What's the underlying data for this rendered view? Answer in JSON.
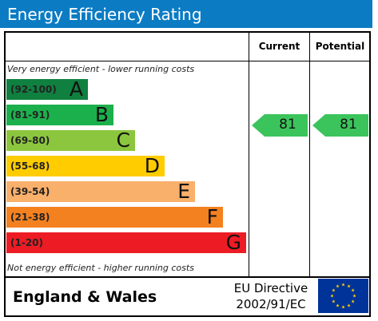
{
  "title": "Energy Efficiency Rating",
  "columns": {
    "current": "Current",
    "potential": "Potential"
  },
  "top_note": "Very energy efficient - lower running costs",
  "bottom_note": "Not energy efficient - higher running costs",
  "bands": [
    {
      "range": "(92-100)",
      "letter": "A",
      "color": "#108040"
    },
    {
      "range": "(81-91)",
      "letter": "B",
      "color": "#1cb04c"
    },
    {
      "range": "(69-80)",
      "letter": "C",
      "color": "#8cc63e"
    },
    {
      "range": "(55-68)",
      "letter": "D",
      "color": "#ffcc00"
    },
    {
      "range": "(39-54)",
      "letter": "E",
      "color": "#f9b06b"
    },
    {
      "range": "(21-38)",
      "letter": "F",
      "color": "#f48120"
    },
    {
      "range": "(1-20)",
      "letter": "G",
      "color": "#ed1c24"
    }
  ],
  "current_rating": "81",
  "potential_rating": "81",
  "rating_color": "#3cc45c",
  "footer": {
    "region": "England & Wales",
    "directive_line1": "EU Directive",
    "directive_line2": "2002/91/EC"
  },
  "flag": {
    "background": "#003399",
    "stars": "#ffcc00"
  }
}
